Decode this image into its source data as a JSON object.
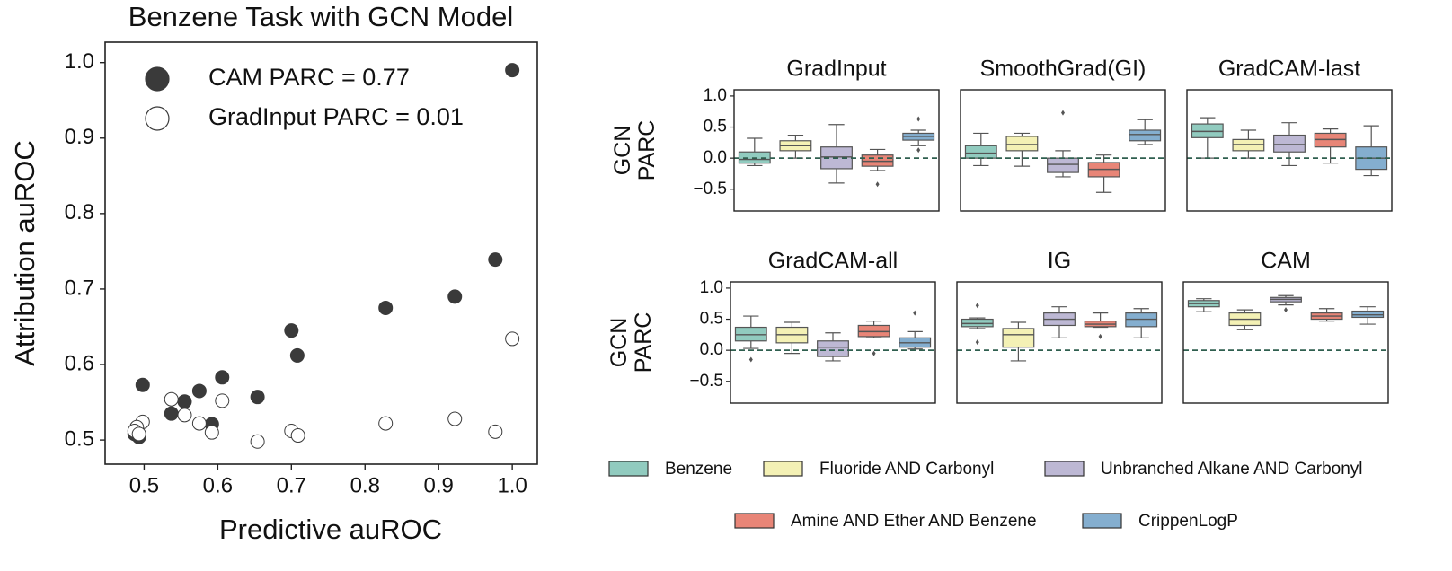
{
  "chart_data": [
    {
      "type": "scatter",
      "title": "Benzene Task with GCN Model",
      "xlabel": "Predictive auROC",
      "ylabel": "Attribution auROC",
      "xlim": [
        0.447,
        1.034
      ],
      "ylim": [
        0.468,
        1.027
      ],
      "xticks": [
        0.5,
        0.6,
        0.7,
        0.8,
        0.9,
        {
          "value": 1.0,
          "label": "1.0"
        }
      ],
      "yticks": [
        0.5,
        0.6,
        0.7,
        0.8,
        0.9,
        {
          "value": 1.0,
          "label": "1.0"
        }
      ],
      "series": [
        {
          "name": "CAM PARC = 0.77",
          "color": "#3a3a3a",
          "filled": true,
          "x": [
            1.0,
            0.977,
            0.922,
            0.828,
            0.7,
            0.708,
            0.654,
            0.606,
            0.592,
            0.575,
            0.555,
            0.537,
            0.498,
            0.49,
            0.493,
            0.487
          ],
          "y": [
            0.99,
            0.739,
            0.69,
            0.675,
            0.645,
            0.612,
            0.557,
            0.583,
            0.521,
            0.565,
            0.551,
            0.535,
            0.573,
            0.512,
            0.504,
            0.508
          ]
        },
        {
          "name": "GradInput PARC = 0.01",
          "color": "#3a3a3a",
          "filled": false,
          "x": [
            1.0,
            0.977,
            0.922,
            0.828,
            0.7,
            0.709,
            0.654,
            0.606,
            0.592,
            0.575,
            0.555,
            0.537,
            0.498,
            0.49,
            0.487,
            0.493
          ],
          "y": [
            0.634,
            0.511,
            0.528,
            0.522,
            0.512,
            0.506,
            0.498,
            0.552,
            0.51,
            0.522,
            0.533,
            0.554,
            0.524,
            0.517,
            0.512,
            0.508
          ]
        }
      ]
    },
    {
      "type": "box",
      "ylabel": "GCN PARC",
      "ylim": [
        -0.85,
        1.1
      ],
      "yticks": [
        {
          "value": -0.5,
          "label": "−0.5"
        },
        {
          "value": 0,
          "label": "0.0"
        },
        0.5,
        {
          "value": 1.0,
          "label": "1.0"
        }
      ],
      "reference_line": 0,
      "series": [
        {
          "name": "Benzene",
          "color": "#91cbbf"
        },
        {
          "name": "Fluoride AND Carbonyl",
          "color": "#f4f1b5"
        },
        {
          "name": "Unbranched Alkane AND Carbonyl",
          "color": "#bdb8d4"
        },
        {
          "name": "Amine AND Ether AND Benzene",
          "color": "#e88577"
        },
        {
          "name": "CrippenLogP",
          "color": "#84aecf"
        }
      ],
      "panels": [
        {
          "title": "GradInput",
          "boxes": [
            {
              "whislo": -0.12,
              "q1": -0.08,
              "median": -0.02,
              "q3": 0.1,
              "whishi": 0.32,
              "fliers": []
            },
            {
              "whislo": 0.0,
              "q1": 0.12,
              "median": 0.2,
              "q3": 0.28,
              "whishi": 0.37,
              "fliers": []
            },
            {
              "whislo": -0.4,
              "q1": -0.17,
              "median": 0.02,
              "q3": 0.18,
              "whishi": 0.54,
              "fliers": []
            },
            {
              "whislo": -0.2,
              "q1": -0.13,
              "median": -0.05,
              "q3": 0.05,
              "whishi": 0.14,
              "fliers": [
                -0.42
              ]
            },
            {
              "whislo": 0.2,
              "q1": 0.29,
              "median": 0.35,
              "q3": 0.4,
              "whishi": 0.45,
              "fliers": [
                0.63,
                0.13
              ]
            }
          ]
        },
        {
          "title": "SmoothGrad(GI)",
          "boxes": [
            {
              "whislo": -0.12,
              "q1": 0.0,
              "median": 0.08,
              "q3": 0.2,
              "whishi": 0.4,
              "fliers": []
            },
            {
              "whislo": -0.13,
              "q1": 0.12,
              "median": 0.22,
              "q3": 0.35,
              "whishi": 0.4,
              "fliers": []
            },
            {
              "whislo": -0.3,
              "q1": -0.23,
              "median": -0.1,
              "q3": 0.0,
              "whishi": 0.12,
              "fliers": [
                0.73
              ]
            },
            {
              "whislo": -0.55,
              "q1": -0.3,
              "median": -0.18,
              "q3": -0.07,
              "whishi": 0.05,
              "fliers": []
            },
            {
              "whislo": 0.22,
              "q1": 0.28,
              "median": 0.38,
              "q3": 0.45,
              "whishi": 0.62,
              "fliers": []
            }
          ]
        },
        {
          "title": "GradCAM-last",
          "boxes": [
            {
              "whislo": 0.0,
              "q1": 0.33,
              "median": 0.43,
              "q3": 0.55,
              "whishi": 0.65,
              "fliers": []
            },
            {
              "whislo": 0.0,
              "q1": 0.12,
              "median": 0.22,
              "q3": 0.3,
              "whishi": 0.45,
              "fliers": []
            },
            {
              "whislo": -0.12,
              "q1": 0.1,
              "median": 0.22,
              "q3": 0.37,
              "whishi": 0.57,
              "fliers": []
            },
            {
              "whislo": -0.08,
              "q1": 0.18,
              "median": 0.3,
              "q3": 0.4,
              "whishi": 0.47,
              "fliers": []
            },
            {
              "whislo": -0.28,
              "q1": -0.18,
              "median": 0.0,
              "q3": 0.18,
              "whishi": 0.52,
              "fliers": []
            }
          ]
        },
        {
          "title": "GradCAM-all",
          "boxes": [
            {
              "whislo": 0.03,
              "q1": 0.15,
              "median": 0.25,
              "q3": 0.37,
              "whishi": 0.55,
              "fliers": [
                -0.15
              ]
            },
            {
              "whislo": -0.05,
              "q1": 0.12,
              "median": 0.25,
              "q3": 0.37,
              "whishi": 0.45,
              "fliers": []
            },
            {
              "whislo": -0.17,
              "q1": -0.1,
              "median": 0.05,
              "q3": 0.15,
              "whishi": 0.28,
              "fliers": []
            },
            {
              "whislo": 0.2,
              "q1": 0.22,
              "median": 0.3,
              "q3": 0.4,
              "whishi": 0.47,
              "fliers": [
                -0.05
              ]
            },
            {
              "whislo": 0.02,
              "q1": 0.05,
              "median": 0.12,
              "q3": 0.2,
              "whishi": 0.3,
              "fliers": [
                0.6
              ]
            }
          ]
        },
        {
          "title": "IG",
          "boxes": [
            {
              "whislo": 0.35,
              "q1": 0.38,
              "median": 0.43,
              "q3": 0.5,
              "whishi": 0.52,
              "fliers": [
                0.72,
                0.13
              ]
            },
            {
              "whislo": -0.17,
              "q1": 0.05,
              "median": 0.25,
              "q3": 0.35,
              "whishi": 0.45,
              "fliers": []
            },
            {
              "whislo": 0.2,
              "q1": 0.4,
              "median": 0.5,
              "q3": 0.6,
              "whishi": 0.7,
              "fliers": []
            },
            {
              "whislo": 0.37,
              "q1": 0.38,
              "median": 0.42,
              "q3": 0.47,
              "whishi": 0.6,
              "fliers": [
                0.22
              ]
            },
            {
              "whislo": 0.2,
              "q1": 0.38,
              "median": 0.5,
              "q3": 0.6,
              "whishi": 0.67,
              "fliers": []
            }
          ]
        },
        {
          "title": "CAM",
          "boxes": [
            {
              "whislo": 0.62,
              "q1": 0.7,
              "median": 0.75,
              "q3": 0.8,
              "whishi": 0.83,
              "fliers": []
            },
            {
              "whislo": 0.33,
              "q1": 0.4,
              "median": 0.5,
              "q3": 0.6,
              "whishi": 0.65,
              "fliers": []
            },
            {
              "whislo": 0.73,
              "q1": 0.78,
              "median": 0.82,
              "q3": 0.85,
              "whishi": 0.88,
              "fliers": [
                0.65
              ]
            },
            {
              "whislo": 0.47,
              "q1": 0.5,
              "median": 0.55,
              "q3": 0.6,
              "whishi": 0.67,
              "fliers": []
            },
            {
              "whislo": 0.42,
              "q1": 0.53,
              "median": 0.57,
              "q3": 0.63,
              "whishi": 0.7,
              "fliers": []
            }
          ]
        }
      ]
    }
  ]
}
